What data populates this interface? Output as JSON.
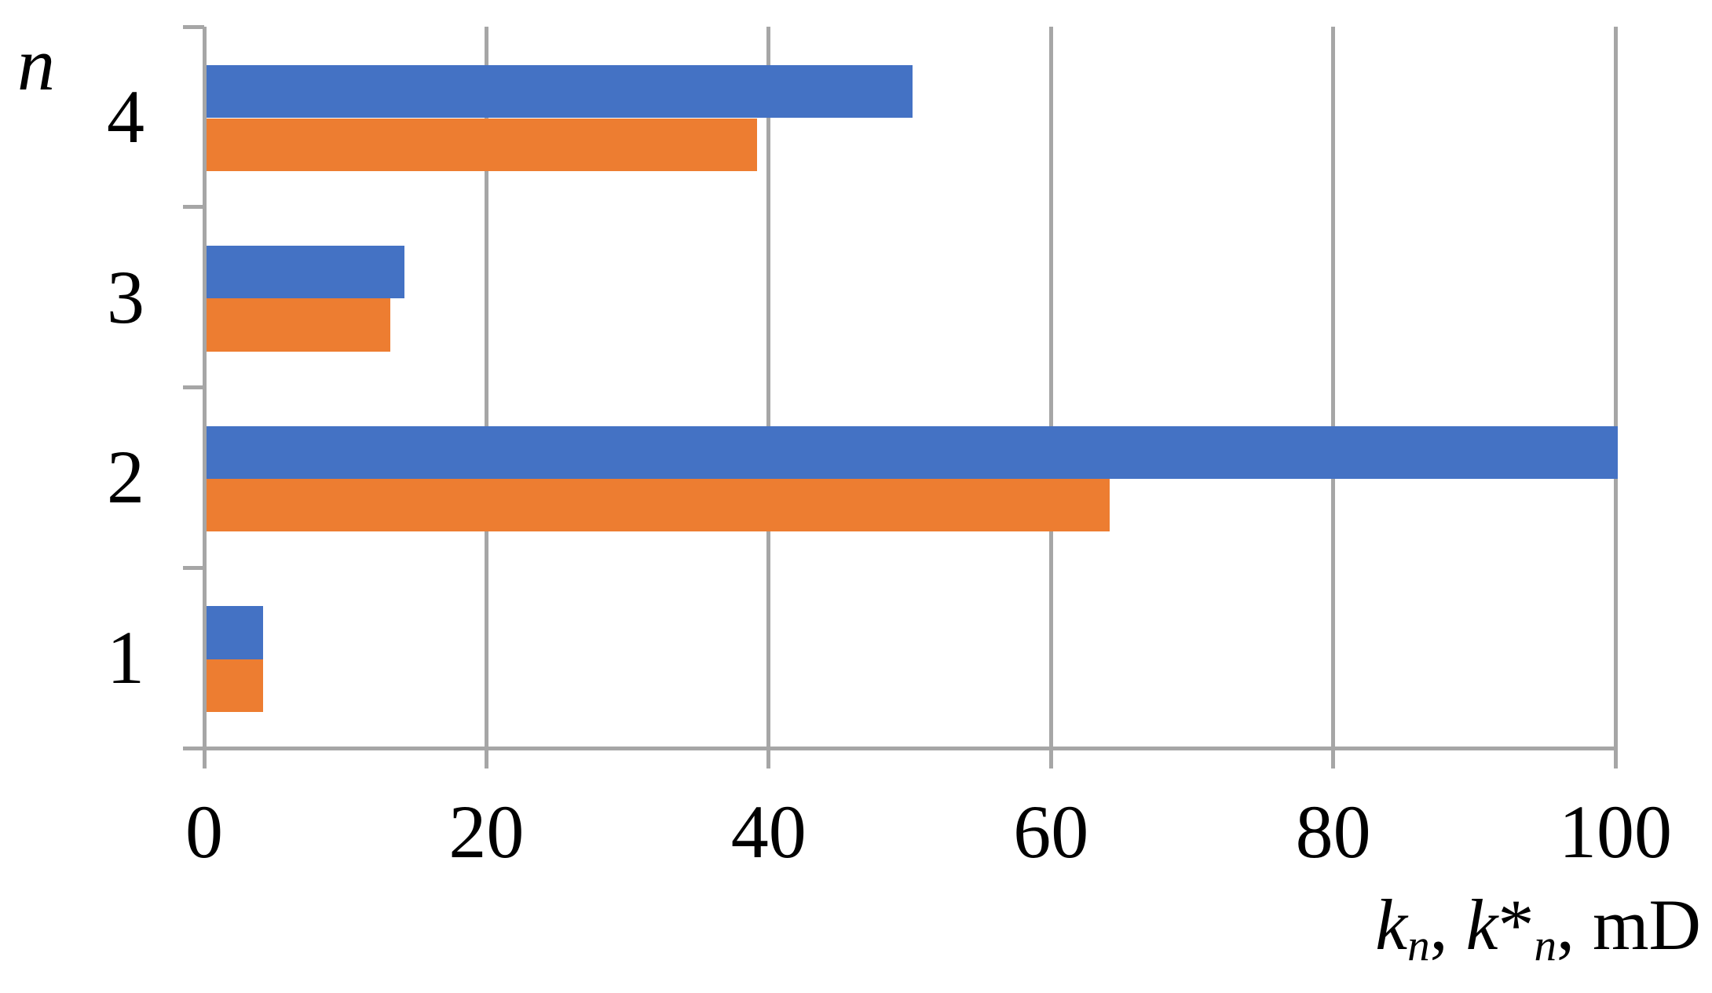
{
  "chart_data": {
    "type": "bar",
    "orientation": "horizontal",
    "title": "",
    "y_axis_title": "n",
    "x_axis_title": "k_n, k*_n, mD",
    "x_axis_title_parts": {
      "k1": "k",
      "sub1": "n",
      "sep1": ", ",
      "k2": "k",
      "star": "*",
      "sub2": "n",
      "sep2": ", mD"
    },
    "categories": [
      "4",
      "3",
      "2",
      "1"
    ],
    "series": [
      {
        "name": "k_n",
        "color": "#4472C4",
        "values": [
          50,
          14,
          100,
          4
        ]
      },
      {
        "name": "k*_n",
        "color": "#ED7D31",
        "values": [
          39,
          13,
          64,
          4
        ]
      }
    ],
    "xlim": [
      0,
      100
    ],
    "x_ticks": [
      0,
      20,
      40,
      60,
      80,
      100
    ],
    "grid": "vertical-only",
    "legend": "none",
    "grid_color": "#A6A6A6",
    "axis_color": "#A6A6A6",
    "text_color": "#000000",
    "background_color": "#FFFFFF"
  }
}
